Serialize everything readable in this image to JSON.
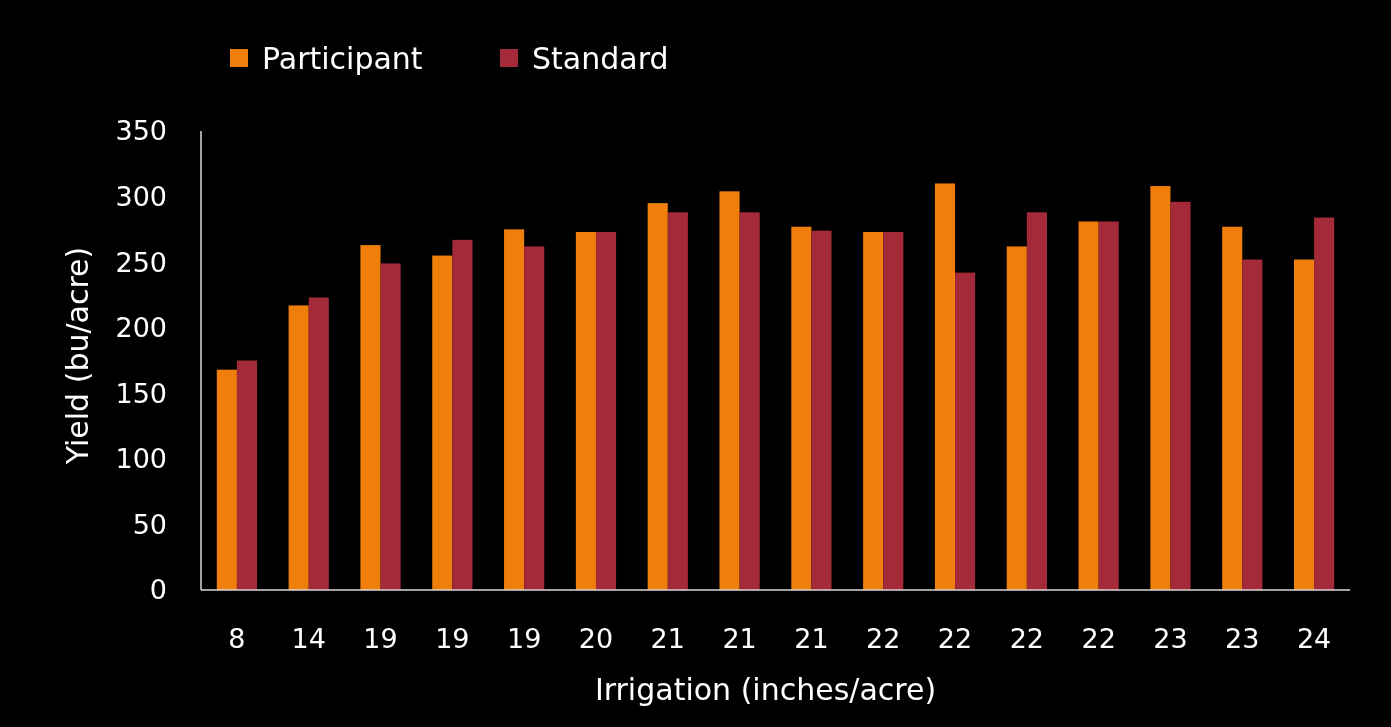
{
  "chart_data": {
    "type": "bar",
    "xlabel": "Irrigation (inches/acre)",
    "ylabel": "Yield (bu/acre)",
    "categories": [
      "8",
      "14",
      "19",
      "19",
      "19",
      "20",
      "21",
      "21",
      "21",
      "22",
      "22",
      "22",
      "22",
      "23",
      "23",
      "24"
    ],
    "series": [
      {
        "name": "Participant",
        "color": "#ef7f0a",
        "values": [
          168,
          217,
          263,
          255,
          275,
          273,
          295,
          304,
          277,
          273,
          310,
          262,
          281,
          308,
          277,
          252
        ]
      },
      {
        "name": "Standard",
        "color": "#a42a3a",
        "values": [
          175,
          223,
          249,
          267,
          262,
          273,
          288,
          288,
          274,
          273,
          242,
          288,
          281,
          296,
          252,
          284
        ]
      }
    ],
    "ylim": [
      0,
      350
    ],
    "yticks": [
      0,
      50,
      100,
      150,
      200,
      250,
      300,
      350
    ],
    "grid": false,
    "legend": "top left"
  }
}
